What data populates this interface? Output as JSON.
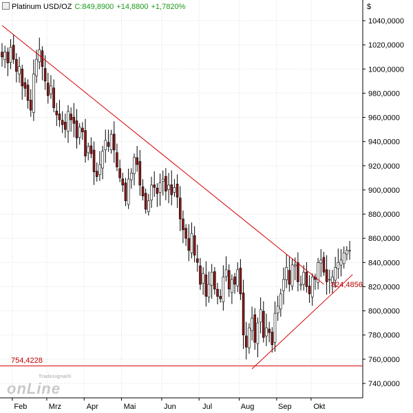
{
  "header": {
    "symbol": "Platinum USD/OZ",
    "close": "C:849,8900",
    "change": "+14,8800",
    "change_pct": "+1,7820%"
  },
  "axis": {
    "currency": "$"
  },
  "logo": {
    "small": "Tradesignal®",
    "main": "onLine",
    "icon": "tradesignal-online-logo"
  },
  "colors": {
    "up_candle": "#ffffff",
    "down_candle": "#8b1a1a",
    "trend_line": "#d40000",
    "grid": "#d9d9d9"
  },
  "annotations": {
    "support_level_label": "754,4228",
    "trend_level_label": "824,4856"
  },
  "chart_data": {
    "type": "candlestick",
    "title": "Platinum USD/OZ",
    "ylim": [
      730,
      1050
    ],
    "yticks": [
      "740,0000",
      "760,0000",
      "780,0000",
      "800,0000",
      "820,0000",
      "840,0000",
      "860,0000",
      "880,0000",
      "900,0000",
      "920,0000",
      "940,0000",
      "960,0000",
      "980,0000",
      "1000,0000",
      "1020,0000",
      "1040,0000"
    ],
    "ytick_values": [
      740,
      760,
      780,
      800,
      820,
      840,
      860,
      880,
      900,
      920,
      940,
      960,
      980,
      1000,
      1020,
      1040
    ],
    "xticks": [
      "Feb",
      "Mrz",
      "Apr",
      "Mai",
      "Jun",
      "Jul",
      "Aug",
      "Sep",
      "Okt"
    ],
    "xtick_index": [
      5,
      17,
      30,
      43,
      57,
      70,
      84,
      97,
      109
    ],
    "n_bars": 122,
    "grid": true,
    "close_series": [
      1010,
      1014,
      1005,
      1018,
      1008,
      998,
      1002,
      986,
      984,
      974,
      966,
      996,
      1008,
      1016,
      1002,
      990,
      978,
      986,
      968,
      962,
      958,
      954,
      950,
      965,
      958,
      955,
      943,
      952,
      948,
      928,
      936,
      930,
      915,
      911,
      921,
      932,
      941,
      936,
      946,
      933,
      919,
      910,
      904,
      891,
      909,
      914,
      927,
      921,
      904,
      895,
      884,
      891,
      904,
      902,
      897,
      906,
      909,
      899,
      904,
      896,
      902,
      894,
      876,
      867,
      860,
      850,
      864,
      846,
      840,
      822,
      831,
      812,
      822,
      832,
      818,
      812,
      810,
      828,
      834,
      818,
      826,
      822,
      834,
      814,
      780,
      770,
      786,
      794,
      774,
      790,
      801,
      778,
      786,
      782,
      772,
      798,
      804,
      814,
      826,
      836,
      822,
      838,
      838,
      824,
      822,
      832,
      820,
      814,
      828,
      826,
      840,
      842,
      832,
      824,
      826,
      828,
      836,
      840,
      842,
      848,
      850,
      850
    ],
    "trend_lines": [
      {
        "label": "",
        "from": {
          "bar": 0,
          "value": 1036
        },
        "to": {
          "bar": 112,
          "value": 822
        }
      },
      {
        "label": "824,4856",
        "from": {
          "bar": 87,
          "value": 752
        },
        "to": {
          "bar": 122,
          "value": 830
        }
      }
    ],
    "horizontal_lines": [
      {
        "label": "754,4228",
        "value": 754.4228
      }
    ]
  }
}
